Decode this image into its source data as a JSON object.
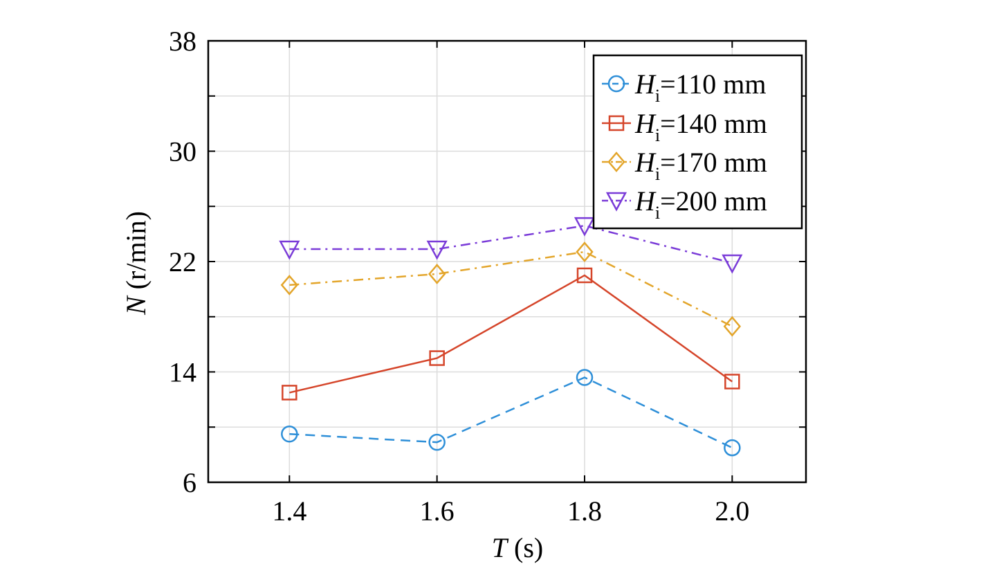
{
  "chart_data": {
    "type": "line",
    "x": [
      1.4,
      1.6,
      1.8,
      2.0
    ],
    "x_tick_labels": [
      "1.4",
      "1.6",
      "1.8",
      "2.0"
    ],
    "xlim": [
      1.29,
      2.1
    ],
    "ylim": [
      6,
      38
    ],
    "y_ticks": [
      6,
      14,
      22,
      30,
      38
    ],
    "y_minor_ticks": [
      10,
      18,
      26,
      34
    ],
    "grid": true,
    "legend_position": "top-right",
    "xlabel": {
      "symbol": "T",
      "unit": " (s)"
    },
    "ylabel": {
      "symbol": "N",
      "unit": " (r/min)"
    },
    "series": [
      {
        "name": "H_i=110 mm",
        "symbol": "H",
        "subscript": "i",
        "label_rest": "=110 mm",
        "values": [
          9.5,
          8.9,
          13.6,
          8.5
        ],
        "color": "#2e8fd8",
        "line_style": "dashed",
        "marker": "circle"
      },
      {
        "name": "H_i=140 mm",
        "symbol": "H",
        "subscript": "i",
        "label_rest": "=140 mm",
        "values": [
          12.5,
          15.0,
          21.0,
          13.3
        ],
        "color": "#d5452a",
        "line_style": "solid",
        "marker": "square"
      },
      {
        "name": "H_i=170 mm",
        "symbol": "H",
        "subscript": "i",
        "label_rest": "=170 mm",
        "values": [
          20.3,
          21.1,
          22.7,
          17.3
        ],
        "color": "#e3a52a",
        "line_style": "dashdot",
        "marker": "diamond"
      },
      {
        "name": "H_i=200 mm",
        "symbol": "H",
        "subscript": "i",
        "label_rest": "=200 mm",
        "values": [
          22.9,
          22.9,
          24.6,
          21.9
        ],
        "color": "#7a3bd8",
        "line_style": "dashdot",
        "marker": "triangle-down"
      }
    ]
  }
}
